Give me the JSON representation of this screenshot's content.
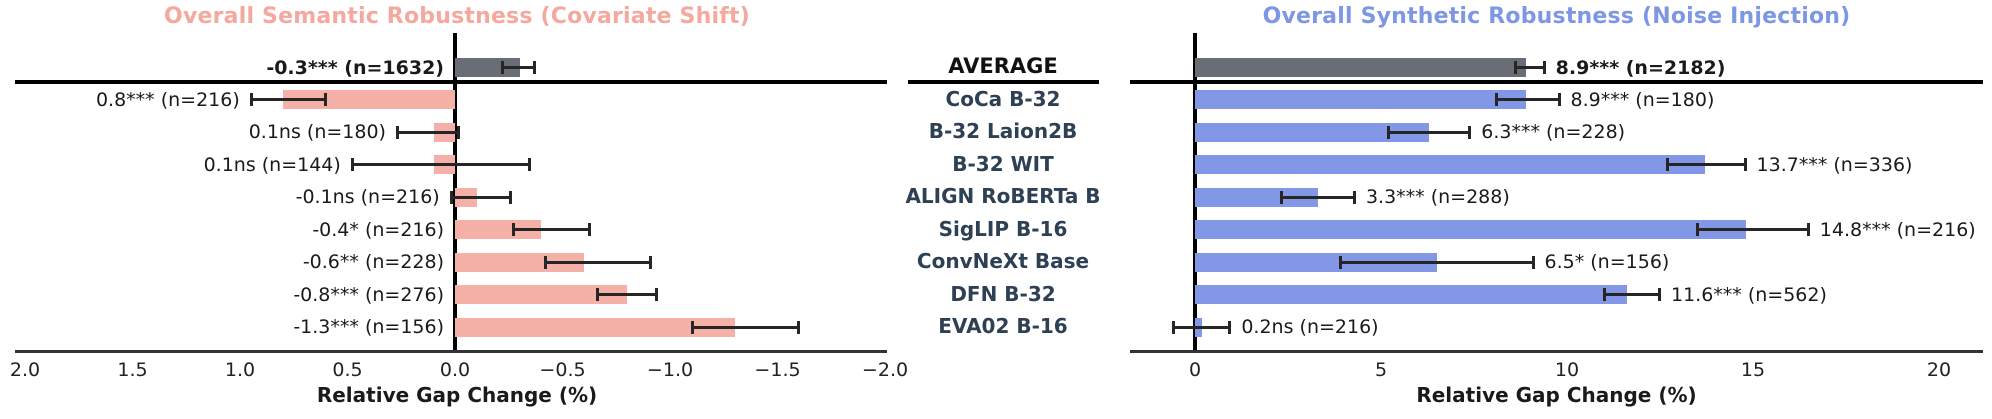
{
  "colors": {
    "left_title": "#f5a89d",
    "right_title": "#7e97e5",
    "left_bar": "#f5b1a7",
    "right_bar": "#8298e6",
    "average_bar": "#696d75",
    "model_name": "#2e4053",
    "error_bar": "#262626",
    "axis_text": "#1a1a1a"
  },
  "center": {
    "header": "AVERAGE",
    "models": [
      "CoCa B-32",
      "B-32 Laion2B",
      "B-32 WIT",
      "ALIGN RoBERTa B",
      "SigLIP B-16",
      "ConvNeXt Base",
      "DFN B-32",
      "EVA02 B-16"
    ]
  },
  "chart_data": [
    {
      "type": "bar",
      "orientation": "horizontal",
      "title": "Overall Semantic Robustness (Covariate Shift)",
      "xlabel": "Relative Gap Change (%)",
      "axis_reversed": true,
      "xlim": [
        2.0,
        -2.0
      ],
      "grid": false,
      "tick_values": [
        2.0,
        1.5,
        1.0,
        0.5,
        0.0,
        -0.5,
        -1.0,
        -1.5,
        -2.0
      ],
      "tick_labels": [
        "2.0",
        "1.5",
        "1.0",
        "0.5",
        "0.0",
        "−0.5",
        "−1.0",
        "−1.5",
        "−2.0"
      ],
      "rows": [
        {
          "model": "AVERAGE",
          "value": -0.3,
          "ci": [
            -0.37,
            -0.22
          ],
          "label": "-0.3*** (n=1632)",
          "n": 1632,
          "significance": "***",
          "bold": true
        },
        {
          "model": "CoCa B-32",
          "value": 0.8,
          "ci": [
            0.6,
            0.95
          ],
          "label": "0.8*** (n=216)",
          "n": 216,
          "significance": "***",
          "bold": false
        },
        {
          "model": "B-32 Laion2B",
          "value": 0.1,
          "ci": [
            -0.02,
            0.27
          ],
          "label": "0.1ns (n=180)",
          "n": 180,
          "significance": "ns",
          "bold": false
        },
        {
          "model": "B-32 WIT",
          "value": 0.1,
          "ci": [
            -0.35,
            0.48
          ],
          "label": "0.1ns (n=144)",
          "n": 144,
          "significance": "ns",
          "bold": false
        },
        {
          "model": "ALIGN RoBERTa B",
          "value": -0.1,
          "ci": [
            -0.26,
            0.02
          ],
          "label": "-0.1ns (n=216)",
          "n": 216,
          "significance": "ns",
          "bold": false
        },
        {
          "model": "SigLIP B-16",
          "value": -0.4,
          "ci": [
            -0.63,
            -0.27
          ],
          "label": "-0.4* (n=216)",
          "n": 216,
          "significance": "*",
          "bold": false
        },
        {
          "model": "ConvNeXt Base",
          "value": -0.6,
          "ci": [
            -0.91,
            -0.42
          ],
          "label": "-0.6** (n=228)",
          "n": 228,
          "significance": "**",
          "bold": false
        },
        {
          "model": "DFN B-32",
          "value": -0.8,
          "ci": [
            -0.94,
            -0.66
          ],
          "label": "-0.8*** (n=276)",
          "n": 276,
          "significance": "***",
          "bold": false
        },
        {
          "model": "EVA02 B-16",
          "value": -1.3,
          "ci": [
            -1.6,
            -1.1
          ],
          "label": "-1.3*** (n=156)",
          "n": 156,
          "significance": "***",
          "bold": false
        }
      ]
    },
    {
      "type": "bar",
      "orientation": "horizontal",
      "title": "Overall Synthetic Robustness (Noise Injection)",
      "xlabel": "Relative Gap Change (%)",
      "axis_reversed": false,
      "xlim": [
        -1.75,
        21.2
      ],
      "grid": false,
      "tick_values": [
        0,
        5,
        10,
        15,
        20
      ],
      "tick_labels": [
        "0",
        "5",
        "10",
        "15",
        "20"
      ],
      "rows": [
        {
          "model": "AVERAGE",
          "value": 8.9,
          "ci": [
            8.6,
            9.4
          ],
          "label": "8.9*** (n=2182)",
          "n": 2182,
          "significance": "***",
          "bold": true
        },
        {
          "model": "CoCa B-32",
          "value": 8.9,
          "ci": [
            8.1,
            9.8
          ],
          "label": "8.9*** (n=180)",
          "n": 180,
          "significance": "***",
          "bold": false
        },
        {
          "model": "B-32 Laion2B",
          "value": 6.3,
          "ci": [
            5.2,
            7.4
          ],
          "label": "6.3*** (n=228)",
          "n": 228,
          "significance": "***",
          "bold": false
        },
        {
          "model": "B-32 WIT",
          "value": 13.7,
          "ci": [
            12.7,
            14.8
          ],
          "label": "13.7*** (n=336)",
          "n": 336,
          "significance": "***",
          "bold": false
        },
        {
          "model": "ALIGN RoBERTa B",
          "value": 3.3,
          "ci": [
            2.3,
            4.3
          ],
          "label": "3.3*** (n=288)",
          "n": 288,
          "significance": "***",
          "bold": false
        },
        {
          "model": "SigLIP B-16",
          "value": 14.8,
          "ci": [
            13.5,
            16.5
          ],
          "label": "14.8*** (n=216)",
          "n": 216,
          "significance": "***",
          "bold": false
        },
        {
          "model": "ConvNeXt Base",
          "value": 6.5,
          "ci": [
            3.9,
            9.1
          ],
          "label": "6.5* (n=156)",
          "n": 156,
          "significance": "*",
          "bold": false
        },
        {
          "model": "DFN B-32",
          "value": 11.6,
          "ci": [
            11.0,
            12.5
          ],
          "label": "11.6*** (n=562)",
          "n": 562,
          "significance": "***",
          "bold": false
        },
        {
          "model": "EVA02 B-16",
          "value": 0.2,
          "ci": [
            -0.6,
            0.95
          ],
          "label": "0.2ns (n=216)",
          "n": 216,
          "significance": "ns",
          "bold": false
        }
      ]
    }
  ]
}
